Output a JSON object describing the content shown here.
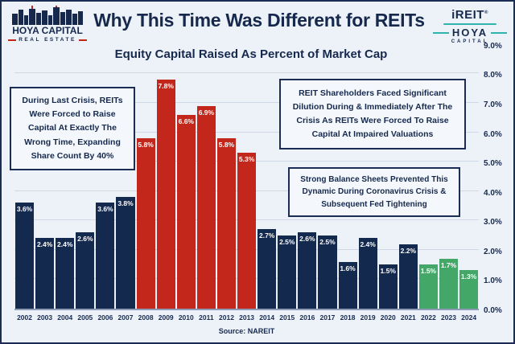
{
  "header": {
    "title": "Why This Time Was Different for REITs",
    "subtitle": "Equity Capital Raised As Percent of Market Cap",
    "logo_left": {
      "name1": "HOYA CAPITAL",
      "name2": "REAL ESTATE"
    },
    "logo_right": {
      "name1": "iREIT",
      "reg": "®",
      "name2": "HOYA",
      "name3": "CAPITAL"
    }
  },
  "chart_data": {
    "type": "bar",
    "title": "Equity Capital Raised As Percent of Market Cap",
    "categories": [
      "2002",
      "2003",
      "2004",
      "2005",
      "2006",
      "2007",
      "2008",
      "2009",
      "2010",
      "2011",
      "2012",
      "2013",
      "2014",
      "2015",
      "2016",
      "2017",
      "2018",
      "2019",
      "2020",
      "2021",
      "2022",
      "2023",
      "2024"
    ],
    "values": [
      3.6,
      2.4,
      2.4,
      2.6,
      3.6,
      3.8,
      5.8,
      7.8,
      6.6,
      6.9,
      5.8,
      5.3,
      2.7,
      2.5,
      2.6,
      2.5,
      1.6,
      2.4,
      1.5,
      2.2,
      1.5,
      1.7,
      1.3
    ],
    "groups": [
      "navy",
      "navy",
      "navy",
      "navy",
      "navy",
      "navy",
      "red",
      "red",
      "red",
      "red",
      "red",
      "red",
      "navy",
      "navy",
      "navy",
      "navy",
      "navy",
      "navy",
      "navy",
      "navy",
      "green",
      "green",
      "green"
    ],
    "group_colors": {
      "navy": "#14294e",
      "red": "#c3271b",
      "green": "#43a767"
    },
    "group_meaning": {
      "navy": "normal years",
      "red": "financial crisis dilution years",
      "green": "recent years (2022-2024)"
    },
    "bar_label_color": "#ffffff",
    "ylim": [
      0,
      8.2
    ],
    "gridlines": [
      1,
      2,
      3,
      4,
      5,
      6,
      7,
      8
    ],
    "grid": true,
    "legend_position": "none",
    "y_axis_side": "right",
    "y_ticks": [
      {
        "value": 0,
        "label": "0.0%"
      },
      {
        "value": 1,
        "label": "1.0%"
      },
      {
        "value": 2,
        "label": "2.0%"
      },
      {
        "value": 3,
        "label": "3.0%"
      },
      {
        "value": 4,
        "label": "4.0%"
      },
      {
        "value": 5,
        "label": "5.0%"
      },
      {
        "value": 6,
        "label": "6.0%"
      },
      {
        "value": 7,
        "label": "7.0%"
      },
      {
        "value": 8,
        "label": "8.0%"
      },
      {
        "value": 9,
        "label": "9.0%"
      }
    ],
    "source": "Source: NAREIT"
  },
  "annotations": {
    "left_box": "During Last Crisis, REITs Were Forced to Raise Capital At Exactly The Wrong Time, Expanding Share Count By 40%",
    "right_top_box": "REIT Shareholders Faced Significant Dilution During & Immediately After The Crisis As REITs Were Forced To Raise Capital At Impaired Valuations",
    "right_bottom_box": "Strong Balance Sheets Prevented This Dynamic During Coronavirus Crisis & Subsequent Fed Tightening"
  },
  "colors": {
    "background": "#edf2f9",
    "frame": "#1b2d55",
    "navy_text": "#16294d",
    "teal_accent": "#2fb4ae",
    "red_accent": "#c3271b",
    "gridline": "#cfd8e5"
  }
}
